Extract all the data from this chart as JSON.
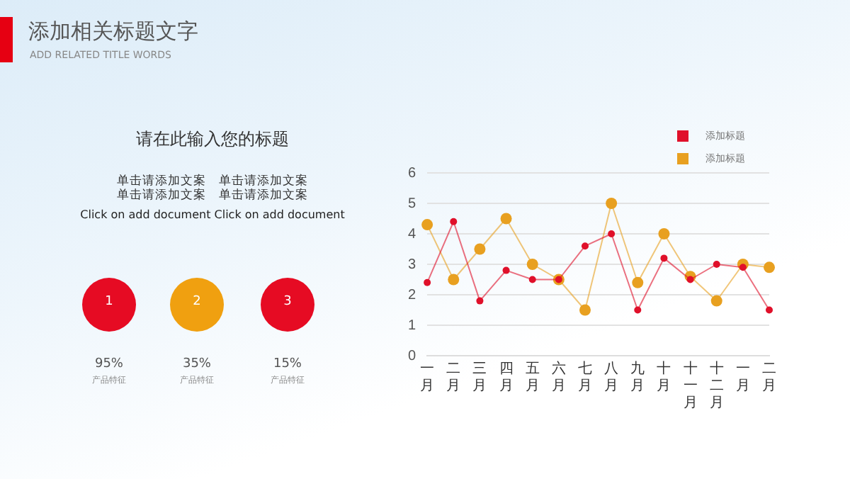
{
  "chart_data": {
    "type": "line",
    "title": "添加相关标题文字",
    "subtitle": "ADD RELATED TITLE WORDS",
    "annotations": [
      "请在此输入您的标题",
      "单击请添加文案　单击请添加文案",
      "单击请添加文案　单击请添加文案",
      "Click on add document   Click on add document",
      "1",
      "2",
      "3",
      "95%",
      "35%",
      "15%",
      "产品特征",
      "产品特征",
      "产品特征"
    ],
    "categories": [
      "一月",
      "二月",
      "三月",
      "四月",
      "五月",
      "六月",
      "七月",
      "八月",
      "九月",
      "十月",
      "十一月",
      "十二月",
      "一月",
      "二月"
    ],
    "series": [
      {
        "name": "添加标题",
        "color": "#e0102a",
        "values": [
          2.4,
          4.4,
          1.8,
          2.8,
          2.5,
          2.5,
          3.6,
          4.0,
          1.5,
          3.2,
          2.5,
          3.0,
          2.9,
          1.5
        ]
      },
      {
        "name": "添加标题",
        "color": "#e8a020",
        "values": [
          4.3,
          2.5,
          3.5,
          4.5,
          3.0,
          2.5,
          1.5,
          5.0,
          2.4,
          4.0,
          2.6,
          1.8,
          3.0,
          2.9
        ]
      }
    ],
    "ylim": [
      0,
      6
    ],
    "yticks": [
      0,
      1,
      2,
      3,
      4,
      5,
      6
    ],
    "grid": "y",
    "legend": "top right",
    "marker": "circle",
    "line_style": "solid"
  }
}
